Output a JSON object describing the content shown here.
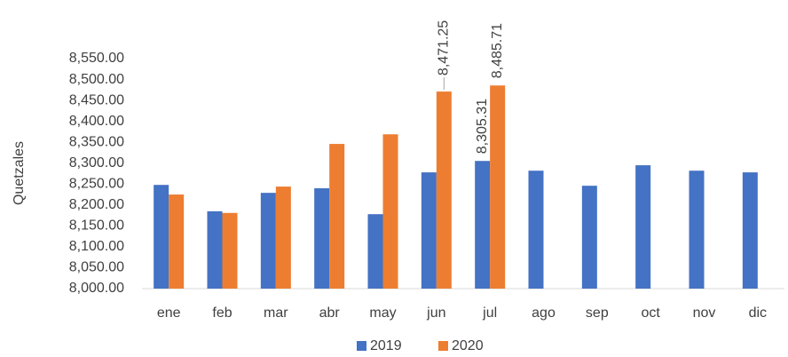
{
  "chart_data": {
    "type": "bar",
    "y_label": "Quetzales",
    "categories": [
      "ene",
      "feb",
      "mar",
      "abr",
      "may",
      "jun",
      "jul",
      "ago",
      "sep",
      "oct",
      "nov",
      "dic"
    ],
    "series": [
      {
        "name": "2019",
        "color": "#4472c4",
        "values": [
          8248,
          8185,
          8229,
          8240,
          8178,
          8278,
          8305.31,
          8282,
          8246,
          8295,
          8282,
          8278
        ],
        "value_labels": [
          null,
          null,
          null,
          null,
          null,
          null,
          "8,305.31",
          null,
          null,
          null,
          null,
          null
        ]
      },
      {
        "name": "2020",
        "color": "#ed7d31",
        "values": [
          8225,
          8181,
          8244,
          8346,
          8369,
          8471.25,
          8485.71,
          null,
          null,
          null,
          null,
          null
        ],
        "value_labels": [
          null,
          null,
          null,
          null,
          null,
          "8,471.25",
          "8,485.71",
          null,
          null,
          null,
          null,
          null
        ]
      }
    ],
    "ylim": [
      8000,
      8550
    ],
    "yticks": [
      {
        "value": 8000,
        "label": "8,000.00"
      },
      {
        "value": 8050,
        "label": "8,050.00"
      },
      {
        "value": 8100,
        "label": "8,100.00"
      },
      {
        "value": 8150,
        "label": "8,150.00"
      },
      {
        "value": 8200,
        "label": "8,200.00"
      },
      {
        "value": 8250,
        "label": "8,250.00"
      },
      {
        "value": 8300,
        "label": "8,300.00"
      },
      {
        "value": 8350,
        "label": "8,350.00"
      },
      {
        "value": 8400,
        "label": "8,400.00"
      },
      {
        "value": 8450,
        "label": "8,450.00"
      },
      {
        "value": 8500,
        "label": "8,500.00"
      },
      {
        "value": 8550,
        "label": "8,550.00"
      }
    ],
    "grid": false,
    "legend": "bottom"
  }
}
